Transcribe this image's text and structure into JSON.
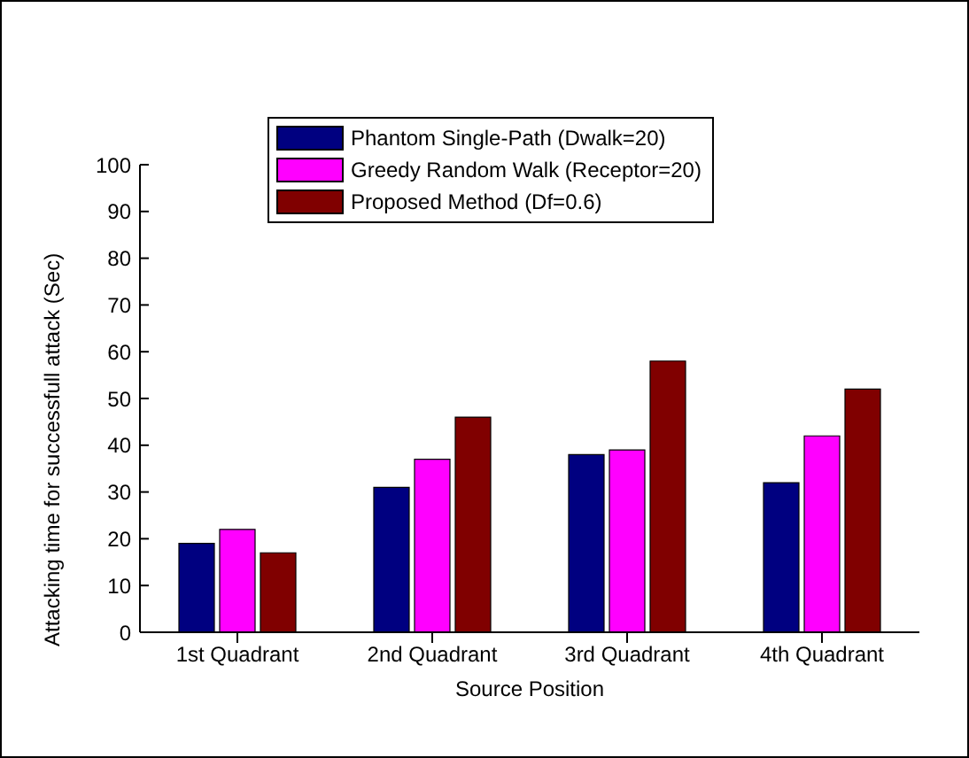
{
  "chart_data": {
    "type": "bar",
    "xlabel": "Source Position",
    "ylabel": "Attacking time for successfull attack (Sec)",
    "categories": [
      "1st Quadrant",
      "2nd Quadrant",
      "3rd Quadrant",
      "4th Quadrant"
    ],
    "series": [
      {
        "name": "Phantom Single-Path (Dwalk=20)",
        "color": "#000080",
        "values": [
          19,
          31,
          38,
          32
        ]
      },
      {
        "name": "Greedy Random Walk (Receptor=20)",
        "color": "#ff00ff",
        "values": [
          22,
          37,
          39,
          42
        ]
      },
      {
        "name": "Proposed Method (Df=0.6)",
        "color": "#800000",
        "values": [
          17,
          46,
          58,
          52
        ]
      }
    ],
    "ylim": [
      0,
      100
    ],
    "yticks": [
      0,
      10,
      20,
      30,
      40,
      50,
      60,
      70,
      80,
      90,
      100
    ],
    "grid": false,
    "legend": "top"
  }
}
